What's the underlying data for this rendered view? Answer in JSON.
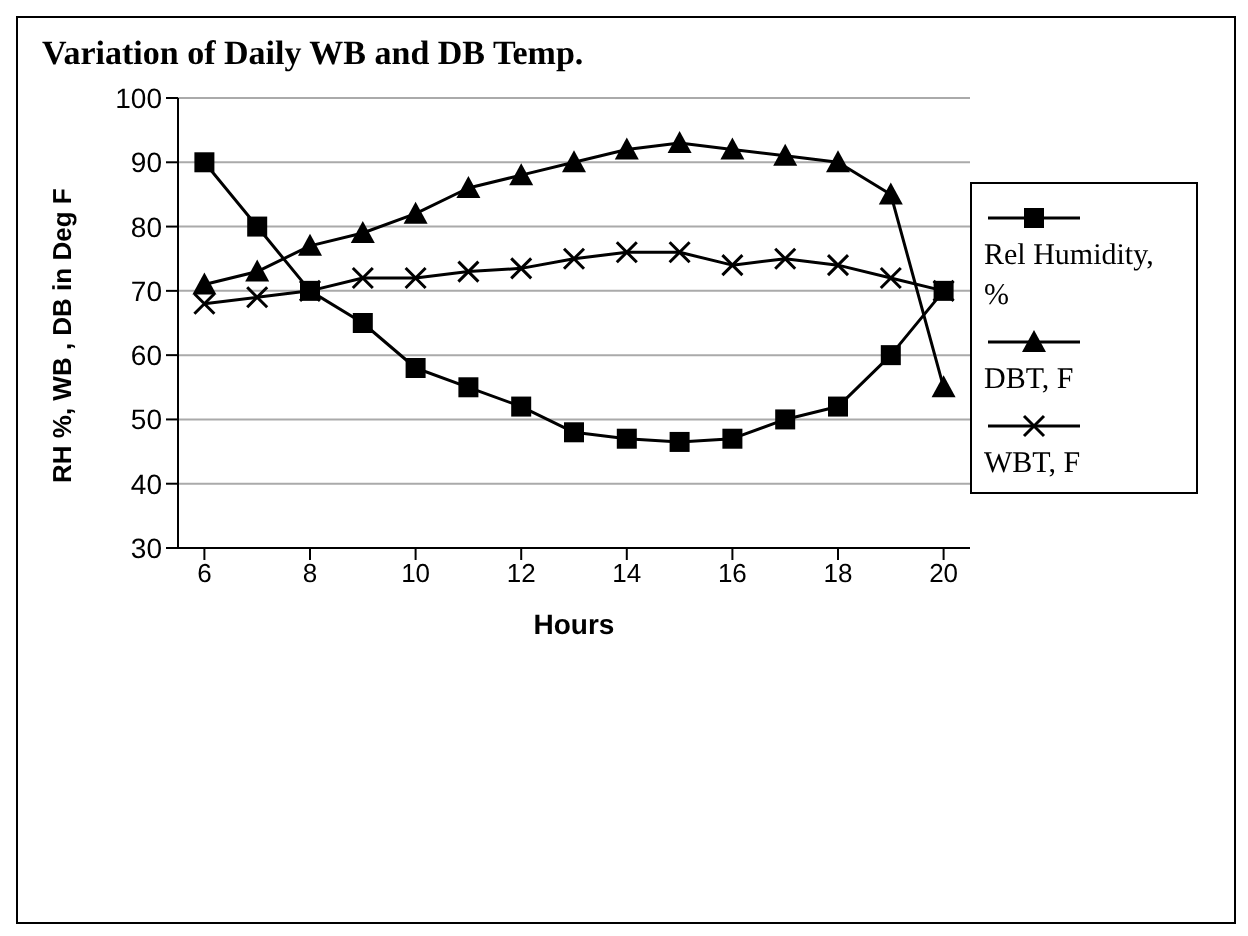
{
  "chart_data": {
    "type": "line",
    "title": "Variation of Daily WB and DB Temp.",
    "xlabel": "Hours",
    "ylabel": "RH %, WB , DB in Deg F",
    "x": [
      6,
      7,
      8,
      9,
      10,
      11,
      12,
      13,
      14,
      15,
      16,
      17,
      18,
      19,
      20
    ],
    "series": [
      {
        "name": "Rel Humidity, %",
        "color": "#000000",
        "marker": "square",
        "values": [
          90,
          80,
          70,
          65,
          58,
          55,
          52,
          48,
          47,
          46.5,
          47,
          50,
          52,
          60,
          70
        ]
      },
      {
        "name": "DBT, F",
        "color": "#000000",
        "marker": "triangle",
        "values": [
          71,
          73,
          77,
          79,
          82,
          86,
          88,
          90,
          92,
          93,
          92,
          91,
          90,
          85,
          55
        ]
      },
      {
        "name": "WBT, F",
        "color": "#000000",
        "marker": "cross",
        "values": [
          68,
          69,
          70,
          72,
          72,
          73,
          73.5,
          75,
          76,
          76,
          74,
          75,
          74,
          72,
          70
        ]
      }
    ],
    "xlim": [
      5.5,
      20.5
    ],
    "xticks": [
      6,
      8,
      10,
      12,
      14,
      16,
      18,
      20
    ],
    "ylim": [
      30,
      100
    ],
    "yticks": [
      30,
      40,
      50,
      60,
      70,
      80,
      90,
      100
    ],
    "grid": "y",
    "legend": "right"
  }
}
